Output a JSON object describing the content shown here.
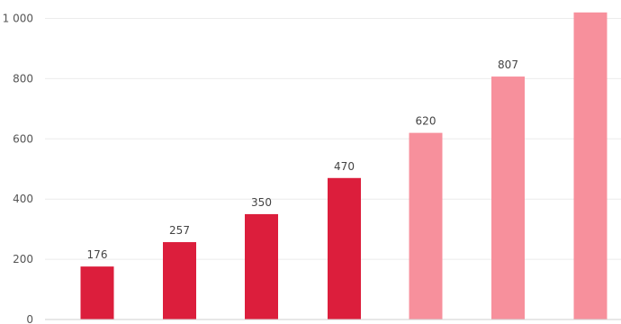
{
  "chart_data": {
    "type": "bar",
    "title": "",
    "xlabel": "",
    "ylabel": "",
    "categories": [
      "",
      "",
      "",
      "",
      "",
      "",
      ""
    ],
    "values": [
      176,
      257,
      350,
      470,
      620,
      807,
      1020
    ],
    "data_labels": [
      "176",
      "257",
      "350",
      "470",
      "620",
      "807",
      ""
    ],
    "ylim": [
      0,
      1000
    ],
    "yticks": [
      0,
      200,
      400,
      600,
      800,
      1000
    ],
    "ytick_labels": [
      "0",
      "200",
      "400",
      "600",
      "800",
      "1 000"
    ],
    "grid": true,
    "legend": "none",
    "colors": {
      "actual": "#dc1e3c",
      "forecast": "#f7909c",
      "grid": "#ececec",
      "axis": "#cfcfcf"
    },
    "bar_color_groups": [
      "actual",
      "actual",
      "actual",
      "actual",
      "forecast",
      "forecast",
      "forecast"
    ]
  }
}
